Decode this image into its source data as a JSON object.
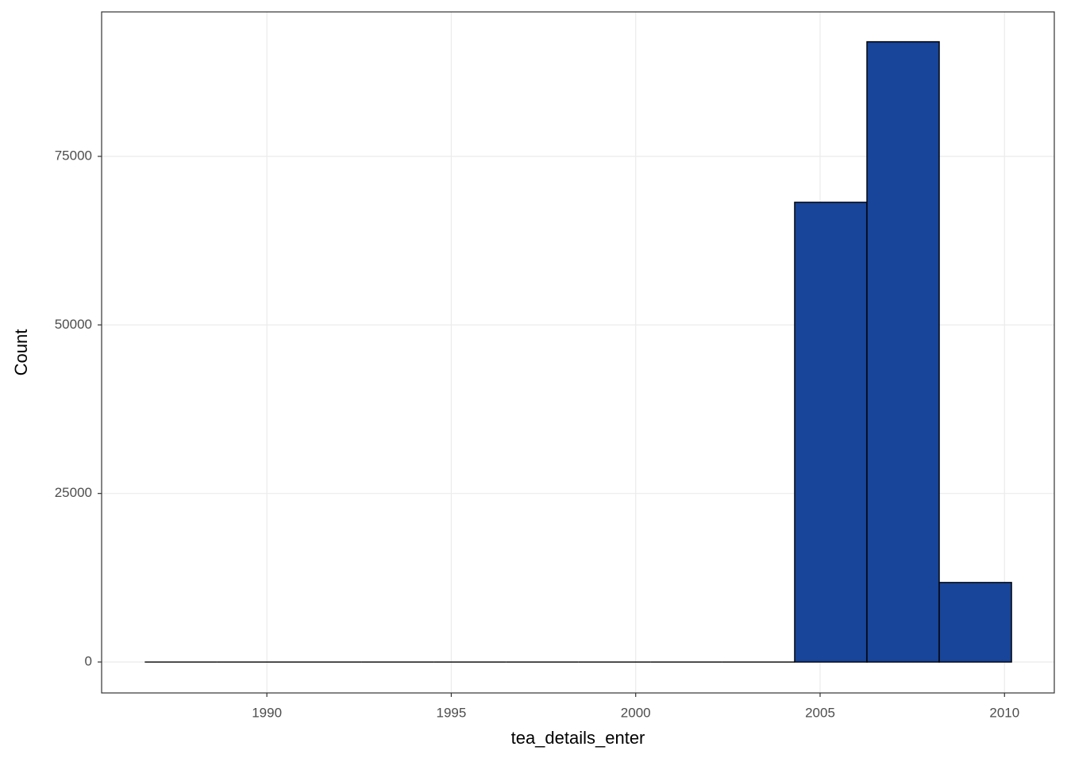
{
  "chart_data": {
    "type": "histogram",
    "x_label": "tea_details_enter",
    "y_label": "Count",
    "bins": [
      1986.69,
      1988.65,
      1990.6,
      1992.56,
      1994.52,
      1996.48,
      1998.44,
      2000.4,
      2002.35,
      2004.31,
      2006.27,
      2008.23,
      2010.19
    ],
    "values": [
      0,
      0,
      0,
      0,
      0,
      0,
      0,
      0,
      0,
      68200,
      92000,
      11800
    ],
    "color": "#184499",
    "xlim": [
      1985.52,
      2011.35
    ],
    "xticks": [
      1990,
      1995,
      2000,
      2005,
      2010
    ],
    "ylim": [
      -4590,
      96430
    ],
    "yticks": [
      0,
      25000,
      50000,
      75000
    ],
    "grid": true
  }
}
